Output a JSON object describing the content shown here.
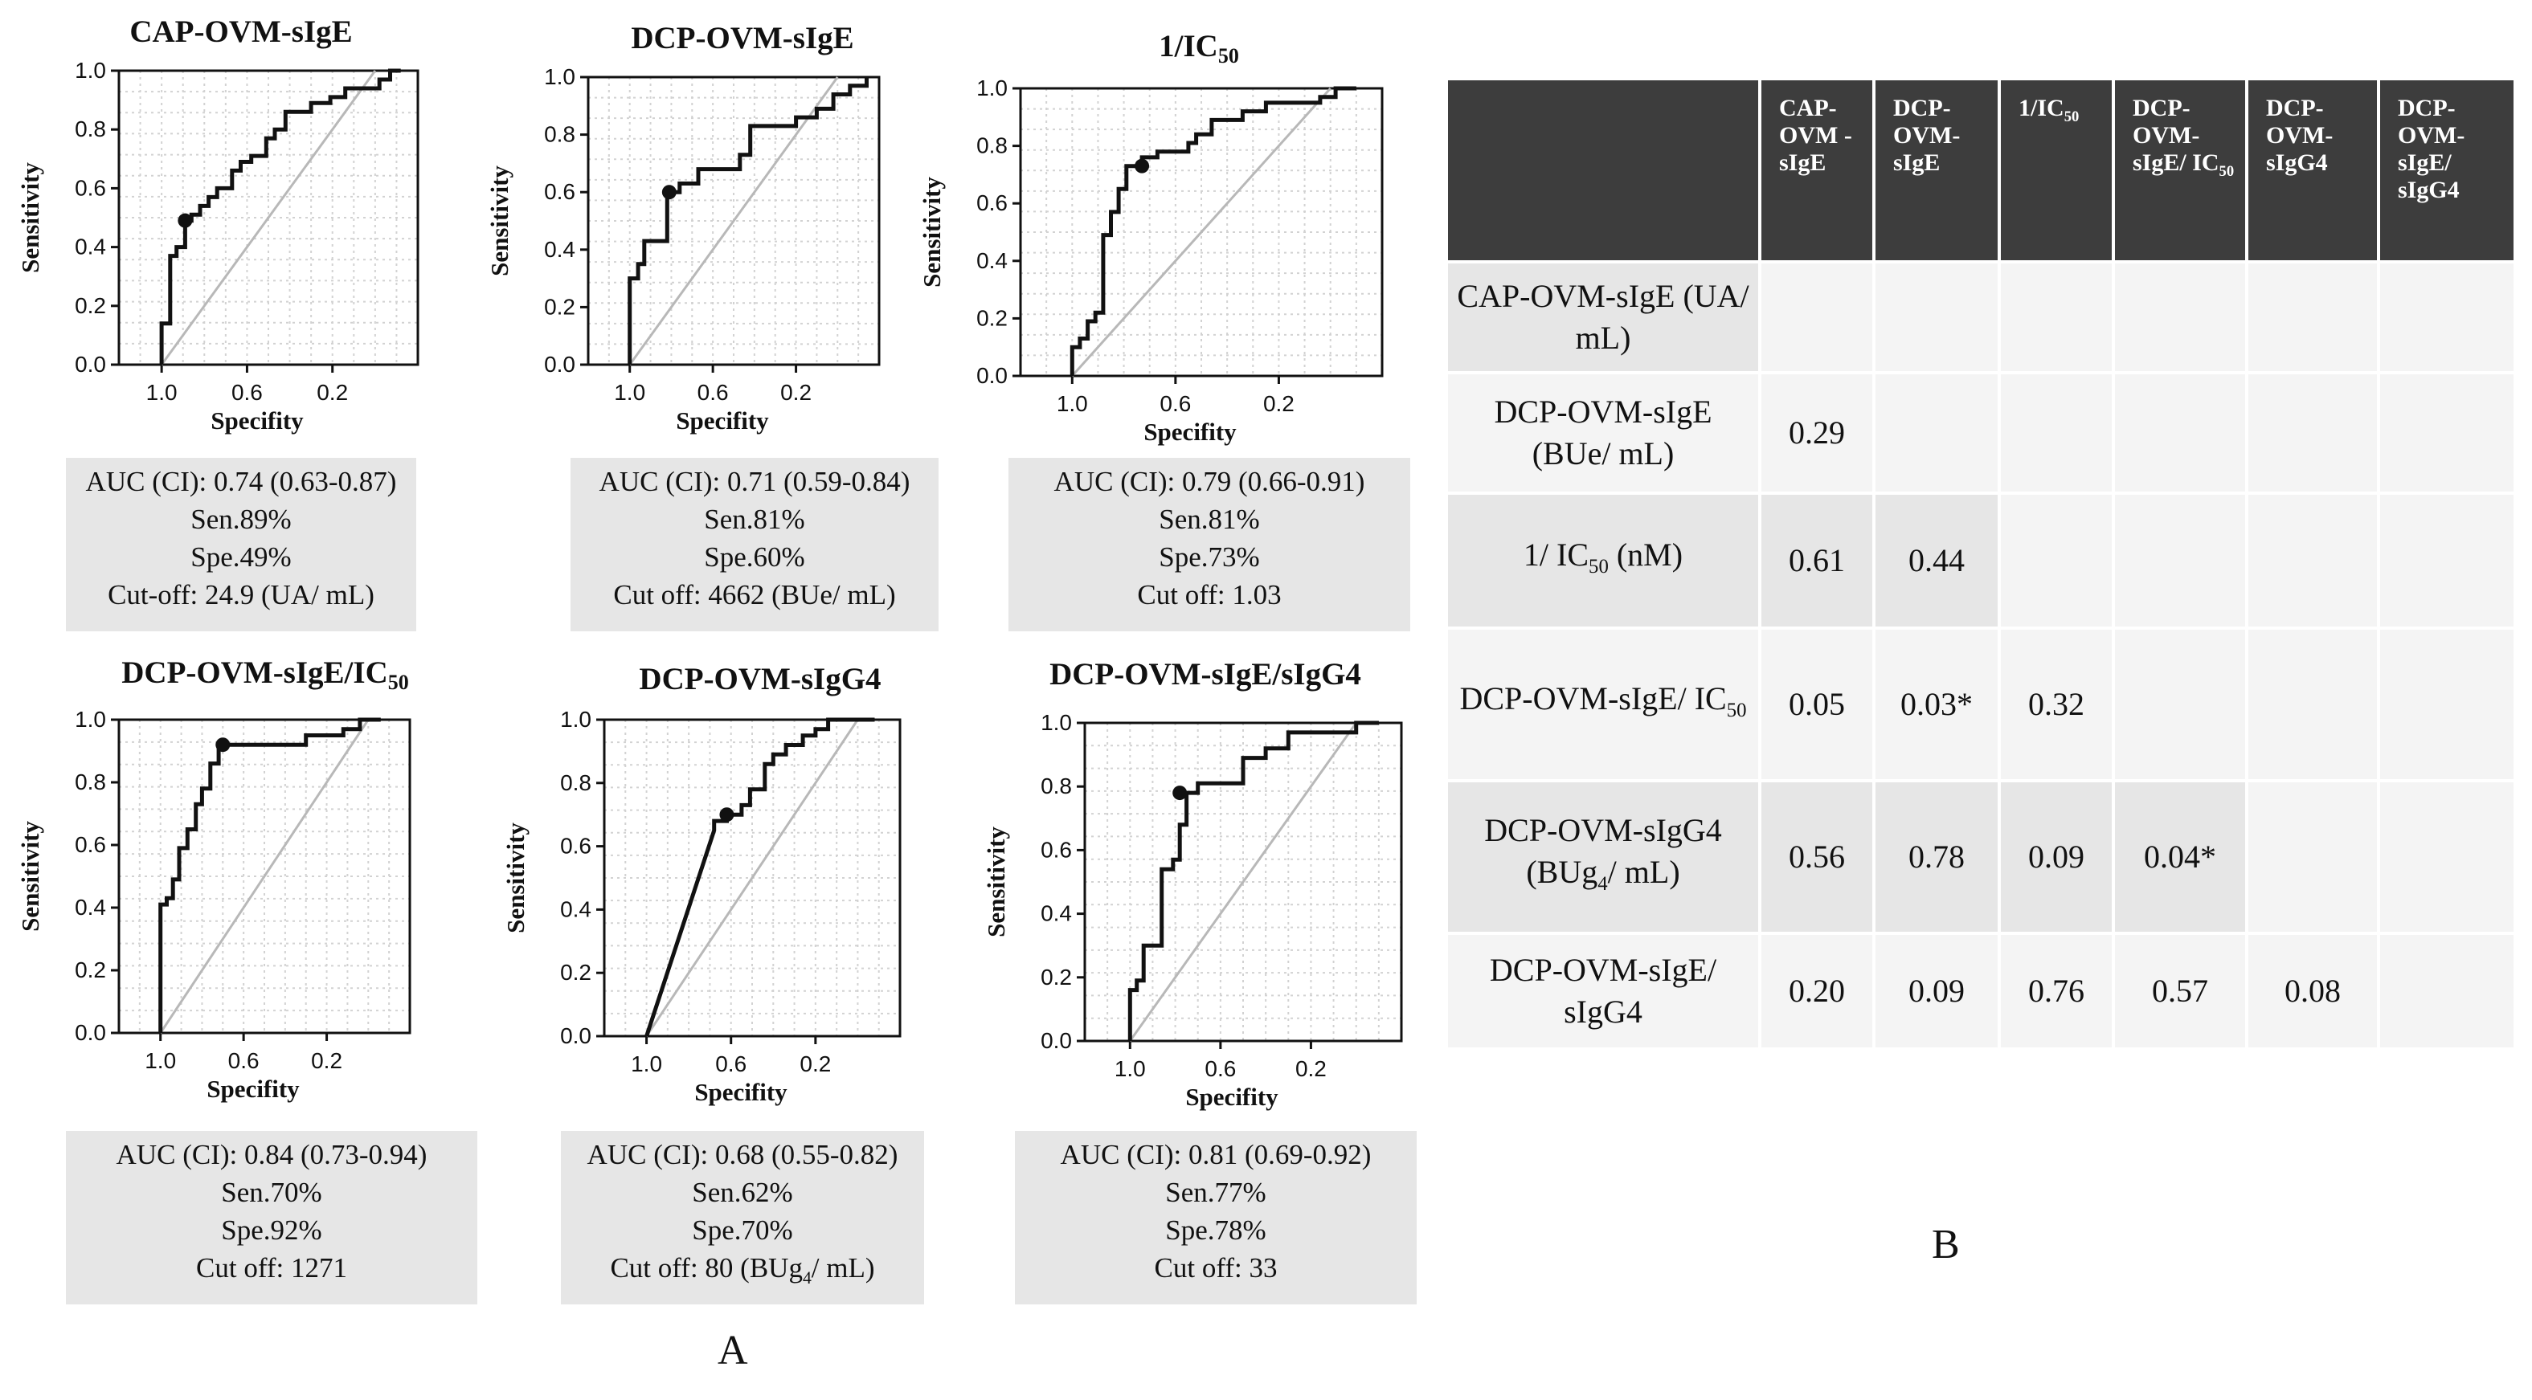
{
  "panel_a": {
    "label": "A",
    "x_label": "Specifity",
    "y_label": "Sensitivity",
    "x_ticks": [
      "1.0",
      "0.6",
      "0.2"
    ],
    "y_ticks": [
      "0.0",
      "0.2",
      "0.4",
      "0.6",
      "0.8",
      "1.0"
    ]
  },
  "panel_b": {
    "label": "B"
  },
  "chart_data": [
    {
      "type": "line",
      "title": "CAP-OVM-sIgE",
      "xlabel": "Specifity",
      "ylabel": "Sensitivity",
      "xlim": [
        1.2,
        -0.2
      ],
      "ylim": [
        0,
        1
      ],
      "reference_line": "diagonal",
      "series": [
        {
          "values": [
            [
              1.0,
              0.0
            ],
            [
              1.0,
              0.14
            ],
            [
              0.96,
              0.14
            ],
            [
              0.96,
              0.37
            ],
            [
              0.93,
              0.37
            ],
            [
              0.93,
              0.4
            ],
            [
              0.89,
              0.4
            ],
            [
              0.89,
              0.49
            ],
            [
              0.86,
              0.49
            ],
            [
              0.86,
              0.51
            ],
            [
              0.82,
              0.51
            ],
            [
              0.82,
              0.54
            ],
            [
              0.78,
              0.54
            ],
            [
              0.78,
              0.57
            ],
            [
              0.74,
              0.57
            ],
            [
              0.74,
              0.6
            ],
            [
              0.67,
              0.6
            ],
            [
              0.67,
              0.66
            ],
            [
              0.63,
              0.66
            ],
            [
              0.63,
              0.69
            ],
            [
              0.58,
              0.69
            ],
            [
              0.58,
              0.71
            ],
            [
              0.51,
              0.71
            ],
            [
              0.51,
              0.77
            ],
            [
              0.47,
              0.77
            ],
            [
              0.47,
              0.8
            ],
            [
              0.42,
              0.8
            ],
            [
              0.42,
              0.86
            ],
            [
              0.3,
              0.86
            ],
            [
              0.3,
              0.89
            ],
            [
              0.21,
              0.89
            ],
            [
              0.21,
              0.91
            ],
            [
              0.14,
              0.91
            ],
            [
              0.14,
              0.94
            ],
            [
              -0.02,
              0.94
            ],
            [
              -0.02,
              0.97
            ],
            [
              -0.07,
              0.97
            ],
            [
              -0.07,
              1.0
            ],
            [
              -0.12,
              1.0
            ]
          ]
        }
      ],
      "optimal_point": [
        0.89,
        0.49
      ],
      "stats": {
        "auc": "AUC (CI): 0.74 (0.63-0.87)",
        "sen": "Sen.89%",
        "spe": "Spe.49%",
        "cutoff": "Cut-off: 24.9 (UA/ mL)"
      }
    },
    {
      "type": "line",
      "title": "DCP-OVM-sIgE",
      "xlabel": "Specifity",
      "ylabel": "Sensitivity",
      "xlim": [
        1.2,
        -0.2
      ],
      "ylim": [
        0,
        1
      ],
      "reference_line": "diagonal",
      "series": [
        {
          "values": [
            [
              1.0,
              0.0
            ],
            [
              1.0,
              0.3
            ],
            [
              0.96,
              0.3
            ],
            [
              0.96,
              0.35
            ],
            [
              0.93,
              0.35
            ],
            [
              0.93,
              0.43
            ],
            [
              0.82,
              0.43
            ],
            [
              0.82,
              0.6
            ],
            [
              0.76,
              0.6
            ],
            [
              0.76,
              0.63
            ],
            [
              0.67,
              0.63
            ],
            [
              0.67,
              0.68
            ],
            [
              0.47,
              0.68
            ],
            [
              0.47,
              0.73
            ],
            [
              0.42,
              0.73
            ],
            [
              0.42,
              0.83
            ],
            [
              0.2,
              0.83
            ],
            [
              0.2,
              0.86
            ],
            [
              0.1,
              0.86
            ],
            [
              0.1,
              0.89
            ],
            [
              0.02,
              0.89
            ],
            [
              0.02,
              0.94
            ],
            [
              -0.06,
              0.94
            ],
            [
              -0.06,
              0.97
            ],
            [
              -0.14,
              0.97
            ],
            [
              -0.14,
              1.0
            ]
          ]
        }
      ],
      "optimal_point": [
        0.81,
        0.6
      ],
      "stats": {
        "auc": "AUC (CI): 0.71 (0.59-0.84)",
        "sen": "Sen.81%",
        "spe": "Spe.60%",
        "cutoff": "Cut off: 4662 (BUe/ mL)"
      }
    },
    {
      "type": "line",
      "title": "1/IC50",
      "xlabel": "Specifity",
      "ylabel": "Sensitivity",
      "xlim": [
        1.2,
        -0.2
      ],
      "ylim": [
        0,
        1
      ],
      "reference_line": "diagonal",
      "series": [
        {
          "values": [
            [
              1.0,
              0.0
            ],
            [
              1.0,
              0.1
            ],
            [
              0.97,
              0.1
            ],
            [
              0.97,
              0.13
            ],
            [
              0.94,
              0.13
            ],
            [
              0.94,
              0.19
            ],
            [
              0.91,
              0.19
            ],
            [
              0.91,
              0.22
            ],
            [
              0.88,
              0.22
            ],
            [
              0.88,
              0.49
            ],
            [
              0.85,
              0.49
            ],
            [
              0.85,
              0.57
            ],
            [
              0.82,
              0.57
            ],
            [
              0.82,
              0.65
            ],
            [
              0.79,
              0.65
            ],
            [
              0.79,
              0.73
            ],
            [
              0.73,
              0.73
            ],
            [
              0.73,
              0.76
            ],
            [
              0.67,
              0.76
            ],
            [
              0.67,
              0.78
            ],
            [
              0.55,
              0.78
            ],
            [
              0.55,
              0.81
            ],
            [
              0.52,
              0.81
            ],
            [
              0.52,
              0.84
            ],
            [
              0.46,
              0.84
            ],
            [
              0.46,
              0.89
            ],
            [
              0.34,
              0.89
            ],
            [
              0.34,
              0.92
            ],
            [
              0.25,
              0.92
            ],
            [
              0.25,
              0.95
            ],
            [
              0.04,
              0.95
            ],
            [
              0.04,
              0.97
            ],
            [
              -0.02,
              0.97
            ],
            [
              -0.02,
              1.0
            ],
            [
              -0.1,
              1.0
            ]
          ]
        }
      ],
      "optimal_point": [
        0.73,
        0.73
      ],
      "stats": {
        "auc": "AUC (CI): 0.79 (0.66-0.91)",
        "sen": "Sen.81%",
        "spe": "Spe.73%",
        "cutoff": "Cut off: 1.03"
      }
    },
    {
      "type": "line",
      "title": "DCP-OVM-sIgE/IC50",
      "xlabel": "Specifity",
      "ylabel": "Sensitivity",
      "xlim": [
        1.2,
        -0.2
      ],
      "ylim": [
        0,
        1
      ],
      "reference_line": "diagonal",
      "series": [
        {
          "values": [
            [
              1.0,
              0.0
            ],
            [
              1.0,
              0.41
            ],
            [
              0.97,
              0.41
            ],
            [
              0.97,
              0.43
            ],
            [
              0.94,
              0.43
            ],
            [
              0.94,
              0.49
            ],
            [
              0.91,
              0.49
            ],
            [
              0.91,
              0.59
            ],
            [
              0.87,
              0.59
            ],
            [
              0.87,
              0.65
            ],
            [
              0.83,
              0.65
            ],
            [
              0.83,
              0.73
            ],
            [
              0.8,
              0.73
            ],
            [
              0.8,
              0.78
            ],
            [
              0.76,
              0.78
            ],
            [
              0.76,
              0.86
            ],
            [
              0.72,
              0.86
            ],
            [
              0.72,
              0.92
            ],
            [
              0.3,
              0.92
            ],
            [
              0.3,
              0.95
            ],
            [
              0.12,
              0.95
            ],
            [
              0.12,
              0.97
            ],
            [
              0.04,
              0.97
            ],
            [
              0.04,
              1.0
            ],
            [
              -0.06,
              1.0
            ]
          ]
        }
      ],
      "optimal_point": [
        0.7,
        0.92
      ],
      "stats": {
        "auc": "AUC (CI): 0.84 (0.73-0.94)",
        "sen": "Sen.70%",
        "spe": "Spe.92%",
        "cutoff": "Cut off: 1271"
      }
    },
    {
      "type": "line",
      "title": "DCP-OVM-sIgG4",
      "xlabel": "Specifity",
      "ylabel": "Sensitivity",
      "xlim": [
        1.2,
        -0.2
      ],
      "ylim": [
        0,
        1
      ],
      "reference_line": "diagonal",
      "series": [
        {
          "values": [
            [
              1.0,
              0.0
            ],
            [
              0.68,
              0.65
            ],
            [
              0.68,
              0.68
            ],
            [
              0.62,
              0.68
            ],
            [
              0.62,
              0.7
            ],
            [
              0.55,
              0.7
            ],
            [
              0.55,
              0.73
            ],
            [
              0.51,
              0.73
            ],
            [
              0.51,
              0.78
            ],
            [
              0.44,
              0.78
            ],
            [
              0.44,
              0.86
            ],
            [
              0.4,
              0.86
            ],
            [
              0.4,
              0.89
            ],
            [
              0.34,
              0.89
            ],
            [
              0.34,
              0.92
            ],
            [
              0.26,
              0.92
            ],
            [
              0.26,
              0.95
            ],
            [
              0.2,
              0.95
            ],
            [
              0.2,
              0.97
            ],
            [
              0.14,
              0.97
            ],
            [
              0.14,
              1.0
            ],
            [
              -0.08,
              1.0
            ]
          ]
        }
      ],
      "optimal_point": [
        0.62,
        0.7
      ],
      "stats": {
        "auc": "AUC (CI): 0.68 (0.55-0.82)",
        "sen": "Sen.62%",
        "spe": "Spe.70%",
        "cutoff": "Cut off: 80 (BUg4/ mL)"
      }
    },
    {
      "type": "line",
      "title": "DCP-OVM-sIgE/sIgG4",
      "xlabel": "Specifity",
      "ylabel": "Sensitivity",
      "xlim": [
        1.2,
        -0.2
      ],
      "ylim": [
        0,
        1
      ],
      "reference_line": "diagonal",
      "series": [
        {
          "values": [
            [
              1.0,
              0.0
            ],
            [
              1.0,
              0.16
            ],
            [
              0.97,
              0.16
            ],
            [
              0.97,
              0.19
            ],
            [
              0.94,
              0.19
            ],
            [
              0.94,
              0.3
            ],
            [
              0.86,
              0.3
            ],
            [
              0.86,
              0.54
            ],
            [
              0.81,
              0.54
            ],
            [
              0.81,
              0.57
            ],
            [
              0.78,
              0.57
            ],
            [
              0.78,
              0.68
            ],
            [
              0.75,
              0.68
            ],
            [
              0.75,
              0.78
            ],
            [
              0.7,
              0.78
            ],
            [
              0.7,
              0.81
            ],
            [
              0.5,
              0.81
            ],
            [
              0.5,
              0.89
            ],
            [
              0.4,
              0.89
            ],
            [
              0.4,
              0.92
            ],
            [
              0.3,
              0.92
            ],
            [
              0.3,
              0.97
            ],
            [
              0.0,
              0.97
            ],
            [
              0.0,
              1.0
            ],
            [
              -0.1,
              1.0
            ]
          ]
        }
      ],
      "optimal_point": [
        0.78,
        0.78
      ],
      "stats": {
        "auc": "AUC (CI): 0.81 (0.69-0.92)",
        "sen": "Sen.77%",
        "spe": "Spe.78%",
        "cutoff": "Cut off: 33"
      }
    }
  ],
  "table": {
    "headers": [
      "CAP-OVM -sIgE",
      "DCP-OVM-sIgE",
      "1/IC50",
      "DCP-OVM-sIgE/ IC50",
      "DCP-OVM-sIgG4",
      "DCP-OVM-sIgE/ sIgG4"
    ],
    "rows": [
      {
        "label": "CAP-OVM-sIgE (UA/ mL)",
        "values": [
          "",
          "",
          "",
          "",
          "",
          ""
        ]
      },
      {
        "label": "DCP-OVM-sIgE (BUe/ mL)",
        "values": [
          "0.29",
          "",
          "",
          "",
          "",
          ""
        ]
      },
      {
        "label": "1/ IC50 (nM)",
        "values": [
          "0.61",
          "0.44",
          "",
          "",
          "",
          ""
        ]
      },
      {
        "label": "DCP-OVM-sIgE/ IC50",
        "values": [
          "0.05",
          "0.03*",
          "0.32",
          "",
          "",
          ""
        ]
      },
      {
        "label": "DCP-OVM-sIgG4 (BUg4/ mL)",
        "values": [
          "0.56",
          "0.78",
          "0.09",
          "0.04*",
          "",
          ""
        ]
      },
      {
        "label": "DCP-OVM-sIgE/ sIgG4",
        "values": [
          "0.20",
          "0.09",
          "0.76",
          "0.57",
          "0.08",
          ""
        ]
      }
    ]
  }
}
